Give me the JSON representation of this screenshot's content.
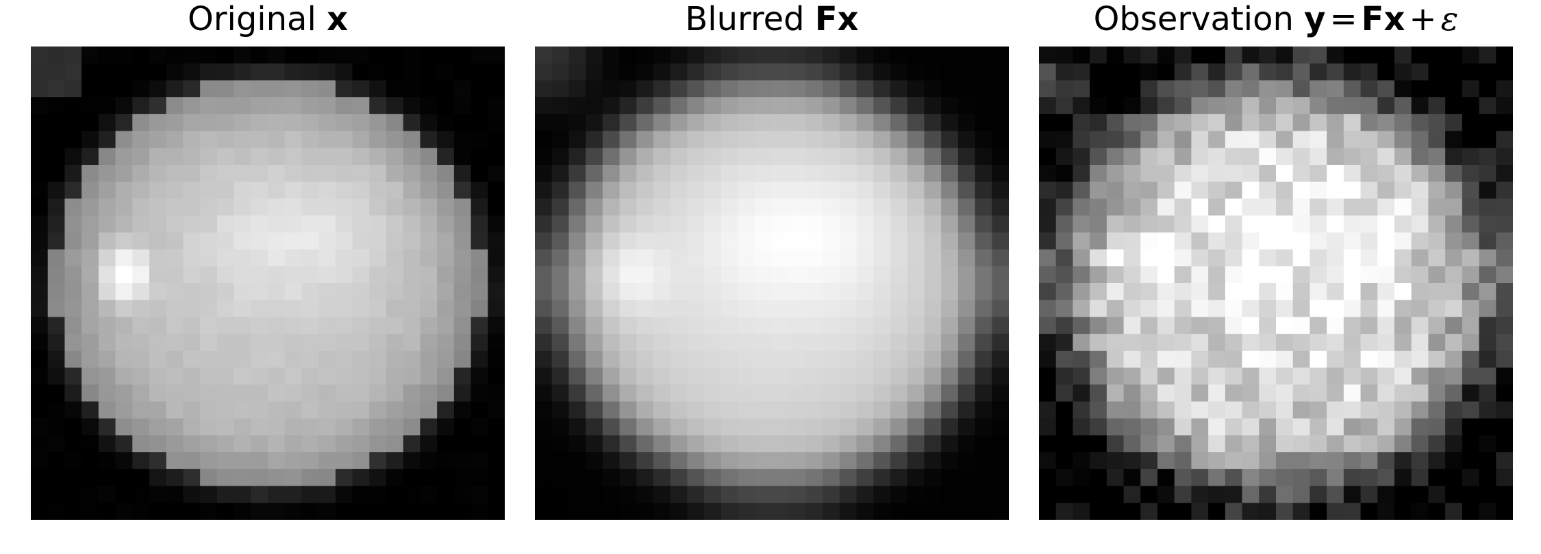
{
  "panels": [
    {
      "id": "original",
      "title_text": "Original ",
      "title_symbol": "x",
      "image": "smooth bright ellipse with a bright spot on the left"
    },
    {
      "id": "blurred",
      "title_text": "Blurred ",
      "title_symbol": "Fx",
      "image": "blurred version of the ellipse"
    },
    {
      "id": "observation",
      "title_text": "Observation ",
      "title_lhs": "y",
      "title_eq": "=",
      "title_rhs": "Fx",
      "title_plus": "+",
      "title_noise": "ε",
      "image": "noisy blurred ellipse"
    }
  ],
  "colors": {
    "background": "#ffffff",
    "image_background": "#000000"
  }
}
